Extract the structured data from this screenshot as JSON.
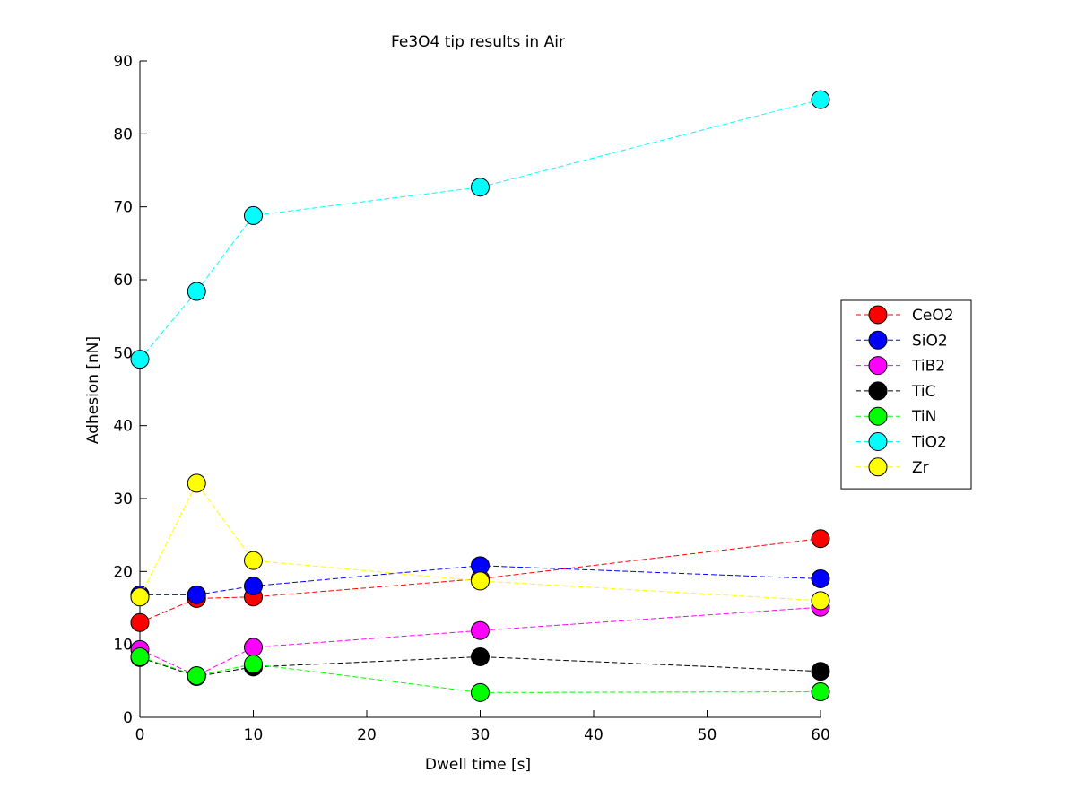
{
  "chart_data": {
    "type": "line",
    "title": "Fe3O4 tip results in Air",
    "xlabel": "Dwell time [s]",
    "ylabel": "Adhesion [nN]",
    "xlim": [
      0,
      60
    ],
    "ylim": [
      0,
      90
    ],
    "xticks": [
      0,
      10,
      20,
      30,
      40,
      50,
      60
    ],
    "yticks": [
      0,
      10,
      20,
      30,
      40,
      50,
      60,
      70,
      80,
      90
    ],
    "grid": false,
    "legend_position": "right",
    "x": [
      0,
      5,
      10,
      30,
      60
    ],
    "series": [
      {
        "name": "CeO2",
        "color": "#ff0000",
        "values": [
          13.0,
          16.3,
          16.5,
          19.0,
          24.5
        ]
      },
      {
        "name": "SiO2",
        "color": "#0000ff",
        "values": [
          16.8,
          16.8,
          18.0,
          20.8,
          19.0
        ]
      },
      {
        "name": "TiB2",
        "color": "#ff00ff",
        "values": [
          9.3,
          5.7,
          9.6,
          11.9,
          15.1
        ]
      },
      {
        "name": "TiC",
        "color": "#000000",
        "values": [
          8.2,
          5.6,
          6.9,
          8.3,
          6.3
        ]
      },
      {
        "name": "TiN",
        "color": "#00ff00",
        "values": [
          8.3,
          5.7,
          7.3,
          3.4,
          3.5
        ]
      },
      {
        "name": "TiO2",
        "color": "#00ffff",
        "values": [
          49.1,
          58.4,
          68.8,
          72.7,
          84.7
        ]
      },
      {
        "name": "Zr",
        "color": "#ffff00",
        "values": [
          16.5,
          32.1,
          21.5,
          18.7,
          16.0
        ]
      }
    ]
  }
}
